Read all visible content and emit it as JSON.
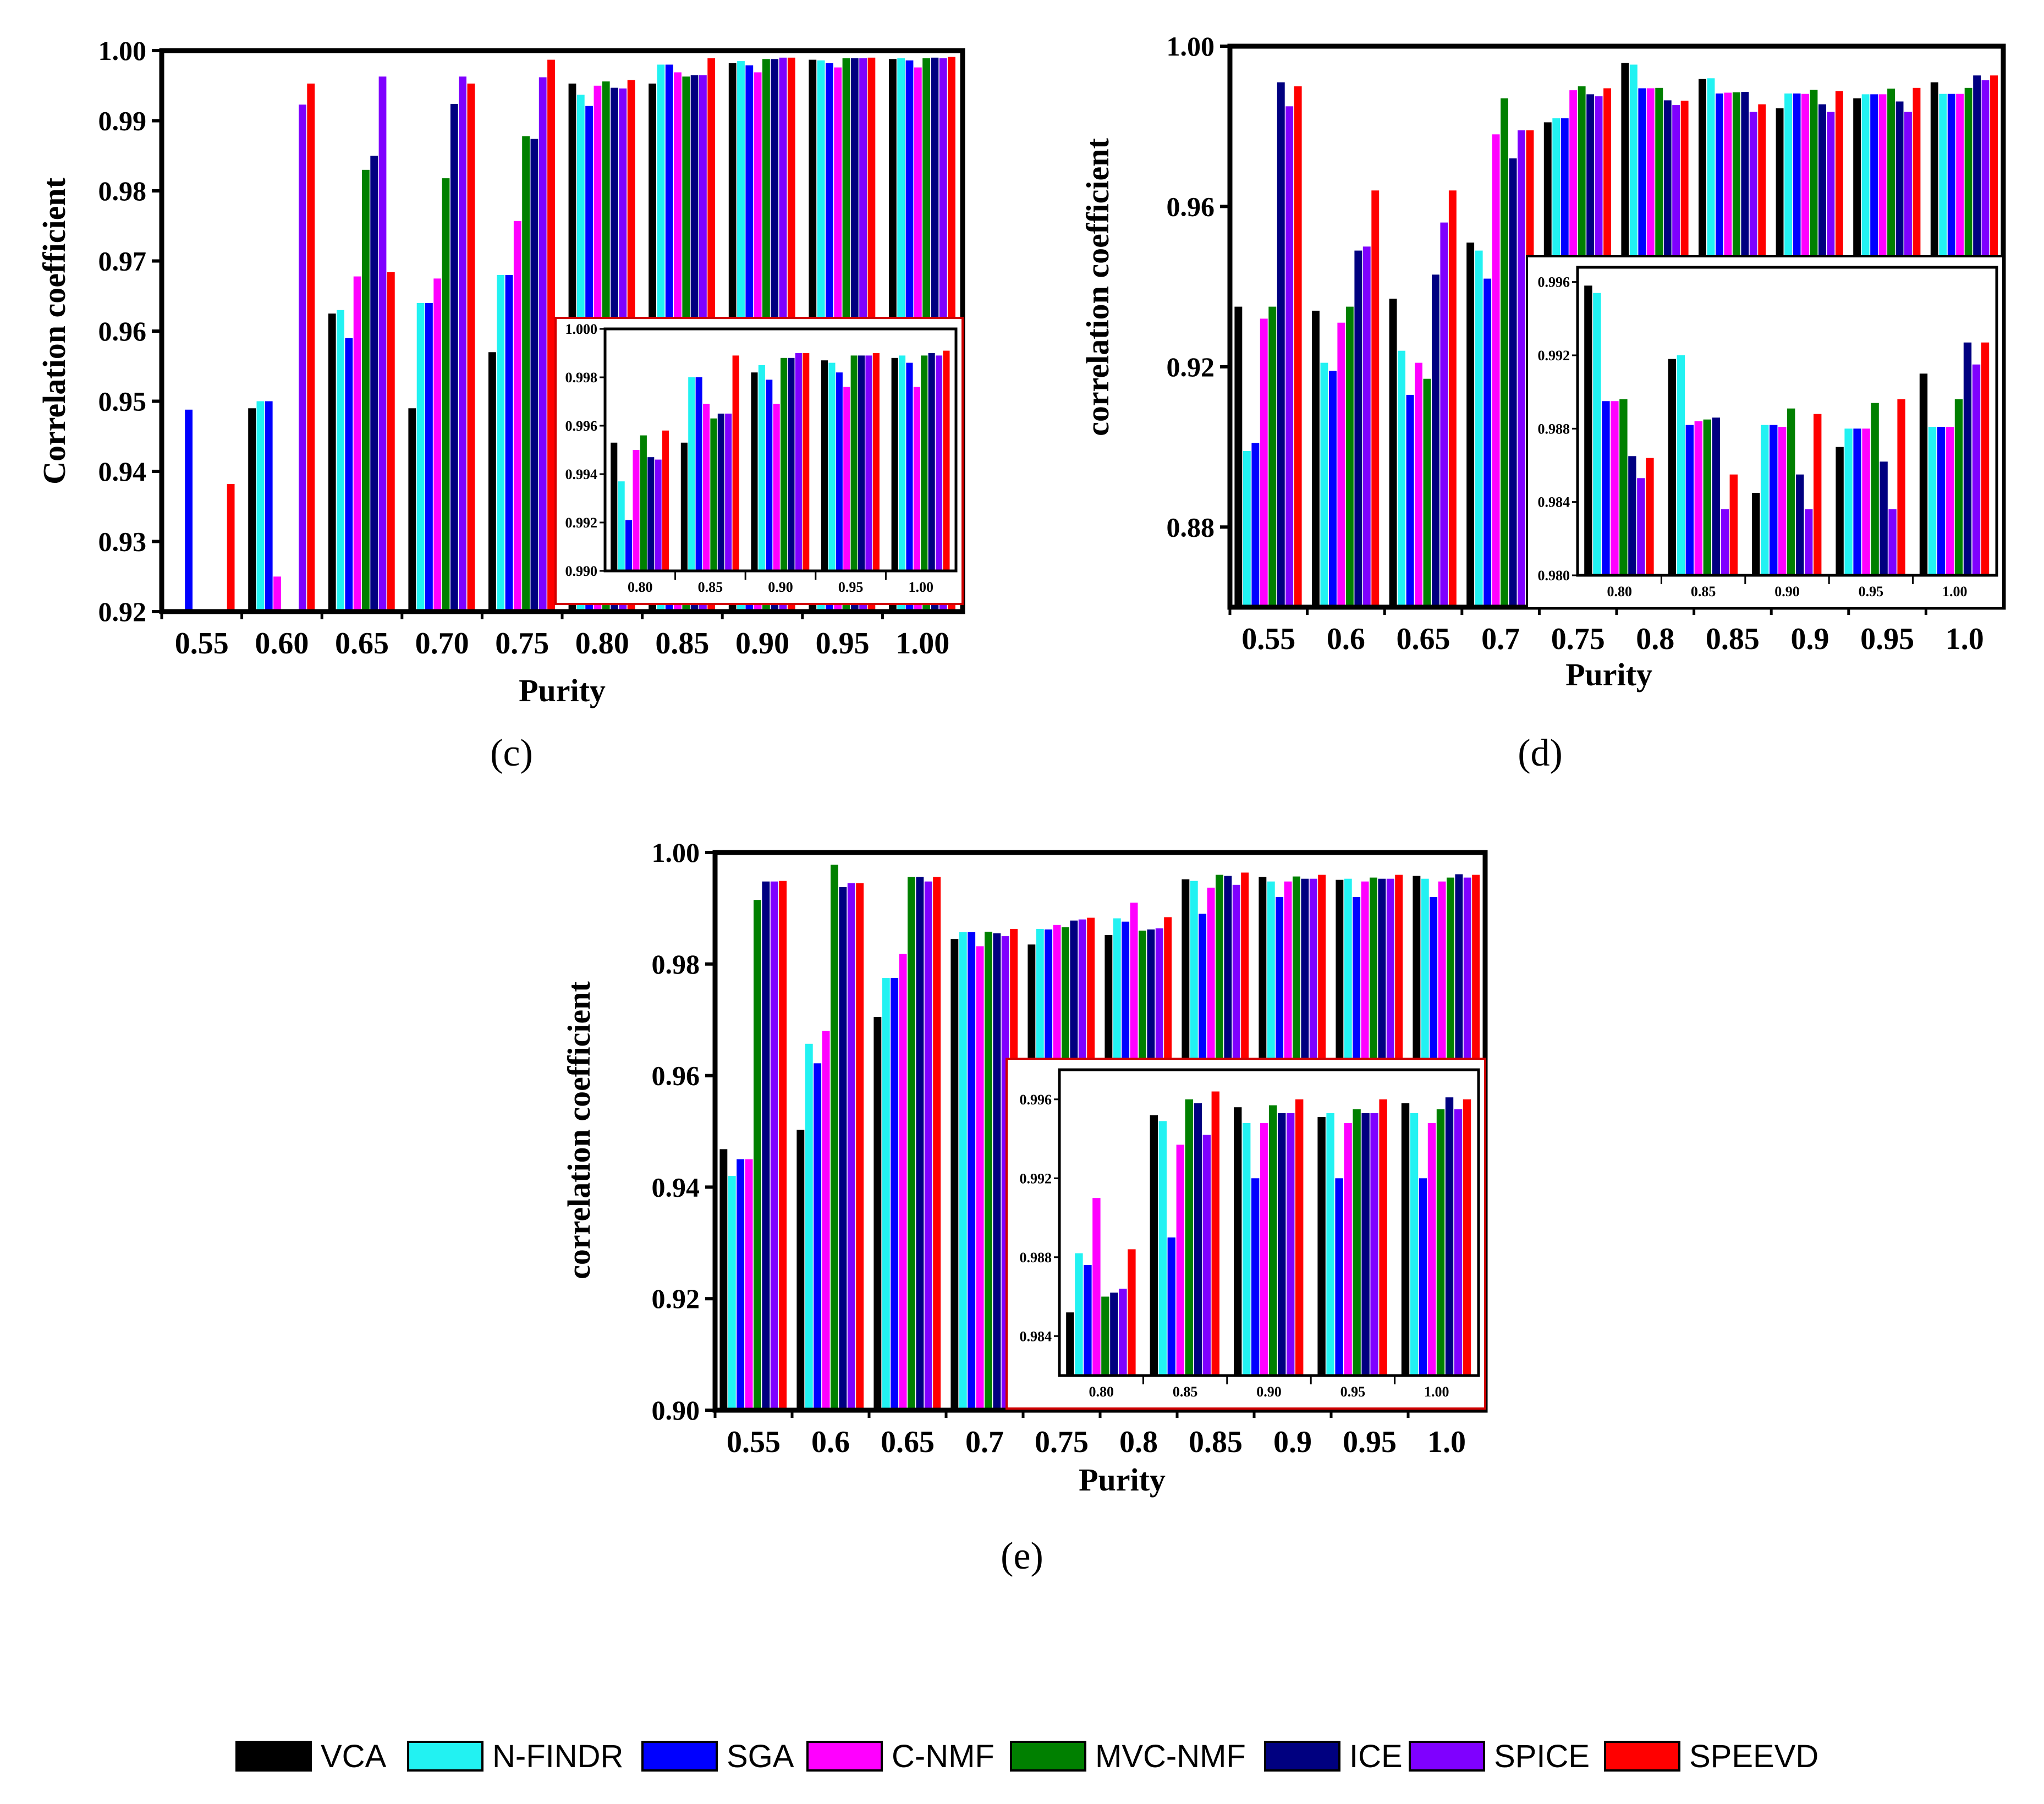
{
  "legend": {
    "entries": [
      "VCA",
      "N-FINDR",
      "SGA",
      "C-NMF",
      "MVC-NMF",
      "ICE",
      "SPICE",
      "SPEEVD"
    ],
    "colors": [
      "#000000",
      "#22f2f2",
      "#0000ff",
      "#ff00ff",
      "#008000",
      "#000080",
      "#7f00ff",
      "#ff0000"
    ]
  },
  "chart_data": [
    {
      "type": "bar",
      "panel_label": "(c)",
      "title": "",
      "xlabel": "Purity",
      "ylabel": "Correlation coefficient",
      "categories": [
        "0.55",
        "0.60",
        "0.65",
        "0.70",
        "0.75",
        "0.80",
        "0.85",
        "0.90",
        "0.95",
        "1.00"
      ],
      "ylim": [
        0.92,
        1.0
      ],
      "yticks": [
        "0.92",
        "0.93",
        "0.94",
        "0.95",
        "0.96",
        "0.97",
        "0.98",
        "0.99",
        "1.00"
      ],
      "series": [
        {
          "name": "VCA",
          "values": [
            0.92,
            0.949,
            0.9625,
            0.949,
            0.957,
            0.9953,
            0.9953,
            0.9982,
            0.9987,
            0.9988
          ]
        },
        {
          "name": "N-FINDR",
          "values": [
            0.92,
            0.95,
            0.963,
            0.964,
            0.968,
            0.9937,
            0.998,
            0.9985,
            0.9986,
            0.9989
          ]
        },
        {
          "name": "SGA",
          "values": [
            0.9488,
            0.95,
            0.959,
            0.964,
            0.968,
            0.9921,
            0.998,
            0.9979,
            0.9982,
            0.9986
          ]
        },
        {
          "name": "C-NMF",
          "values": [
            0.92,
            0.925,
            0.9678,
            0.9675,
            0.9757,
            0.995,
            0.9969,
            0.9969,
            0.9976,
            0.9976
          ]
        },
        {
          "name": "MVC-NMF",
          "values": [
            0.92,
            0.92,
            0.983,
            0.9818,
            0.9878,
            0.9956,
            0.9963,
            0.9988,
            0.9989,
            0.9989
          ]
        },
        {
          "name": "ICE",
          "values": [
            0.92,
            0.92,
            0.985,
            0.9924,
            0.9874,
            0.9947,
            0.9965,
            0.9988,
            0.9989,
            0.999
          ]
        },
        {
          "name": "SPICE",
          "values": [
            0.92,
            0.9923,
            0.9963,
            0.9963,
            0.9962,
            0.9946,
            0.9965,
            0.999,
            0.9989,
            0.9989
          ]
        },
        {
          "name": "SPEEVD",
          "values": [
            0.9382,
            0.9953,
            0.9684,
            0.9953,
            0.9987,
            0.9958,
            0.9989,
            0.999,
            0.999,
            0.9991
          ]
        }
      ],
      "inset": {
        "categories": [
          "0.80",
          "0.85",
          "0.90",
          "0.95",
          "1.00"
        ],
        "ylim": [
          0.99,
          1.0
        ],
        "yticks": [
          "0.990",
          "0.992",
          "0.994",
          "0.996",
          "0.998",
          "1.000"
        ]
      }
    },
    {
      "type": "bar",
      "panel_label": "(d)",
      "title": "",
      "xlabel": "Purity",
      "ylabel": "correlation coefficient",
      "categories": [
        "0.55",
        "0.6",
        "0.65",
        "0.7",
        "0.75",
        "0.8",
        "0.85",
        "0.9",
        "0.95",
        "1.0"
      ],
      "ylim": [
        0.86,
        1.0
      ],
      "yticks": [
        "0.88",
        "0.92",
        "0.96",
        "1.00"
      ],
      "series": [
        {
          "name": "VCA",
          "values": [
            0.935,
            0.934,
            0.937,
            0.951,
            0.981,
            0.9958,
            0.9918,
            0.9845,
            0.987,
            0.991
          ]
        },
        {
          "name": "N-FINDR",
          "values": [
            0.899,
            0.921,
            0.924,
            0.949,
            0.982,
            0.9954,
            0.992,
            0.9882,
            0.988,
            0.9881
          ]
        },
        {
          "name": "SGA",
          "values": [
            0.901,
            0.919,
            0.913,
            0.942,
            0.982,
            0.9895,
            0.9882,
            0.9882,
            0.988,
            0.9881
          ]
        },
        {
          "name": "C-NMF",
          "values": [
            0.932,
            0.931,
            0.921,
            0.978,
            0.989,
            0.9895,
            0.9884,
            0.9881,
            0.988,
            0.9881
          ]
        },
        {
          "name": "MVC-NMF",
          "values": [
            0.935,
            0.935,
            0.917,
            0.987,
            0.99,
            0.9896,
            0.9885,
            0.9891,
            0.9894,
            0.9896
          ]
        },
        {
          "name": "ICE",
          "values": [
            0.991,
            0.949,
            0.943,
            0.972,
            0.988,
            0.9865,
            0.9886,
            0.9855,
            0.9862,
            0.9927
          ]
        },
        {
          "name": "SPICE",
          "values": [
            0.985,
            0.95,
            0.956,
            0.979,
            0.9875,
            0.9853,
            0.9836,
            0.9836,
            0.9836,
            0.9915
          ]
        },
        {
          "name": "SPEEVD",
          "values": [
            0.99,
            0.964,
            0.964,
            0.979,
            0.9895,
            0.9864,
            0.9855,
            0.9888,
            0.9896,
            0.9927
          ]
        }
      ],
      "inset": {
        "categories": [
          "0.80",
          "0.85",
          "0.90",
          "0.95",
          "1.00"
        ],
        "ylim": [
          0.98,
          0.9968
        ],
        "yticks": [
          "0.980",
          "0.984",
          "0.988",
          "0.992",
          "0.996"
        ]
      }
    },
    {
      "type": "bar",
      "panel_label": "(e)",
      "title": "",
      "xlabel": "Purity",
      "ylabel": "correlation coefficient",
      "categories": [
        "0.55",
        "0.6",
        "0.65",
        "0.7",
        "0.75",
        "0.8",
        "0.85",
        "0.9",
        "0.95",
        "1.0"
      ],
      "ylim": [
        0.9,
        1.0
      ],
      "yticks": [
        "0.90",
        "0.92",
        "0.94",
        "0.96",
        "0.98",
        "1.00"
      ],
      "series": [
        {
          "name": "VCA",
          "values": [
            0.9468,
            0.9503,
            0.9705,
            0.9845,
            0.9835,
            0.9852,
            0.9952,
            0.9956,
            0.9951,
            0.9958
          ]
        },
        {
          "name": "N-FINDR",
          "values": [
            0.942,
            0.9657,
            0.9775,
            0.9857,
            0.9863,
            0.9882,
            0.9949,
            0.9948,
            0.9953,
            0.9953
          ]
        },
        {
          "name": "SGA",
          "values": [
            0.945,
            0.9622,
            0.9775,
            0.9857,
            0.9862,
            0.9876,
            0.989,
            0.992,
            0.992,
            0.992
          ]
        },
        {
          "name": "C-NMF",
          "values": [
            0.945,
            0.968,
            0.9818,
            0.9832,
            0.987,
            0.991,
            0.9937,
            0.9948,
            0.9948,
            0.9948
          ]
        },
        {
          "name": "MVC-NMF",
          "values": [
            0.9915,
            0.9978,
            0.9956,
            0.9858,
            0.9866,
            0.986,
            0.996,
            0.9957,
            0.9955,
            0.9955
          ]
        },
        {
          "name": "ICE",
          "values": [
            0.9948,
            0.9938,
            0.9956,
            0.9855,
            0.9878,
            0.9862,
            0.9958,
            0.9953,
            0.9953,
            0.9961
          ]
        },
        {
          "name": "SPICE",
          "values": [
            0.9948,
            0.9945,
            0.9948,
            0.985,
            0.988,
            0.9864,
            0.9942,
            0.9953,
            0.9953,
            0.9955
          ]
        },
        {
          "name": "SPEEVD",
          "values": [
            0.9949,
            0.9945,
            0.9956,
            0.9863,
            0.9883,
            0.9884,
            0.9964,
            0.996,
            0.996,
            0.996
          ]
        }
      ],
      "inset": {
        "categories": [
          "0.80",
          "0.85",
          "0.90",
          "0.95",
          "1.00"
        ],
        "ylim": [
          0.982,
          0.9975
        ],
        "yticks": [
          "0.984",
          "0.988",
          "0.992",
          "0.996"
        ]
      }
    }
  ]
}
